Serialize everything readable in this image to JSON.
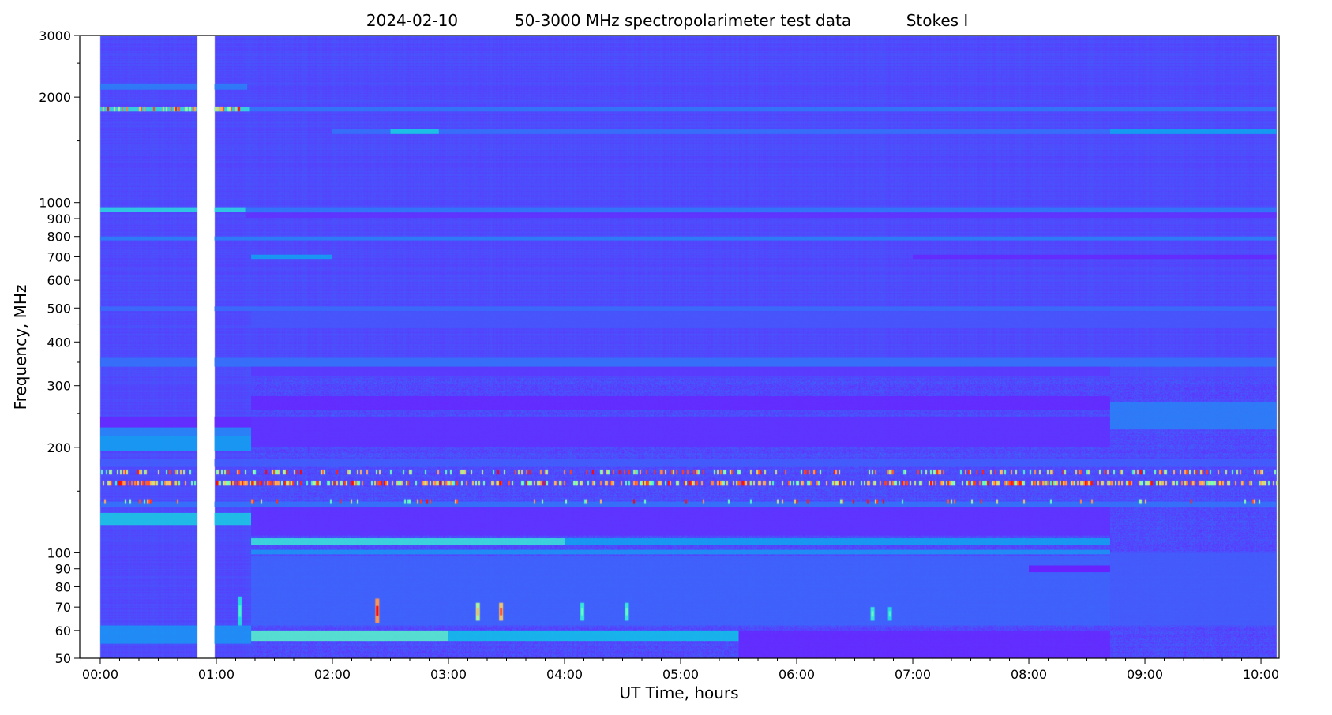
{
  "chart_data": {
    "type": "heatmap",
    "title_parts": [
      "2024-02-10",
      "50-3000 MHz spectropolarimeter test data",
      "Stokes I"
    ],
    "xlabel": "UT Time, hours",
    "ylabel": "Frequency, MHz",
    "x_ticks": [
      "00:00",
      "01:00",
      "02:00",
      "03:00",
      "04:00",
      "05:00",
      "06:00",
      "07:00",
      "08:00",
      "09:00",
      "10:00"
    ],
    "x_minor_step_minutes": 10,
    "y_scale": "log",
    "ylim": [
      50,
      3000
    ],
    "xlim": [
      "-00:10:36",
      "10:09:22"
    ],
    "y_ticks": [
      50,
      60,
      70,
      80,
      90,
      100,
      200,
      300,
      400,
      500,
      600,
      700,
      800,
      900,
      1000,
      2000,
      3000
    ],
    "y_minor_ticks": [
      150,
      250,
      350,
      450,
      1500,
      2500
    ],
    "colormap": "rainbow",
    "colors": {
      "background": "#504cfa",
      "gap": "#ffffff"
    },
    "data_range": [
      "00:00",
      "10:08"
    ],
    "data_gap": [
      "00:50",
      "00:59"
    ],
    "bands": [
      {
        "f": [
          2100,
          2180
        ],
        "t": [
          "00:00",
          "01:16"
        ],
        "level": 0.17
      },
      {
        "f": [
          1820,
          1880
        ],
        "t": [
          "00:00",
          "01:17"
        ],
        "level": 0.35
      },
      {
        "f": [
          1820,
          1880
        ],
        "t": [
          "01:17",
          "10:08"
        ],
        "level": 0.16
      },
      {
        "f": [
          1570,
          1620
        ],
        "t": [
          "02:00",
          "10:08"
        ],
        "level": 0.15
      },
      {
        "f": [
          1570,
          1620
        ],
        "t": [
          "02:30",
          "02:55"
        ],
        "level": 0.3
      },
      {
        "f": [
          1570,
          1620
        ],
        "t": [
          "08:42",
          "10:08"
        ],
        "level": 0.22
      },
      {
        "f": [
          940,
          970
        ],
        "t": [
          "00:00",
          "01:15"
        ],
        "level": 0.33
      },
      {
        "f": [
          940,
          970
        ],
        "t": [
          "01:15",
          "10:08"
        ],
        "level": 0.16
      },
      {
        "f": [
          905,
          935
        ],
        "t": [
          "01:15",
          "10:08"
        ],
        "level": 0.06
      },
      {
        "f": [
          780,
          800
        ],
        "t": [
          "00:00",
          "10:08"
        ],
        "level": 0.17
      },
      {
        "f": [
          690,
          710
        ],
        "t": [
          "01:18",
          "02:00"
        ],
        "level": 0.22
      },
      {
        "f": [
          690,
          710
        ],
        "t": [
          "07:00",
          "10:08"
        ],
        "level": 0.05
      },
      {
        "f": [
          490,
          505
        ],
        "t": [
          "00:00",
          "10:08"
        ],
        "level": 0.14
      },
      {
        "f": [
          440,
          490
        ],
        "t": [
          "01:18",
          "10:08"
        ],
        "level": 0.11
      },
      {
        "f": [
          340,
          360
        ],
        "t": [
          "00:00",
          "10:08"
        ],
        "level": 0.15
      },
      {
        "f": [
          320,
          340
        ],
        "t": [
          "01:18",
          "08:42"
        ],
        "level": 0.07
      },
      {
        "f": [
          255,
          280
        ],
        "t": [
          "01:18",
          "08:42"
        ],
        "level": 0.05
      },
      {
        "f": [
          228,
          245
        ],
        "t": [
          "00:00",
          "01:18"
        ],
        "level": 0.05
      },
      {
        "f": [
          215,
          228
        ],
        "t": [
          "00:00",
          "01:18"
        ],
        "level": 0.18
      },
      {
        "f": [
          195,
          215
        ],
        "t": [
          "00:00",
          "01:18"
        ],
        "level": 0.22
      },
      {
        "f": [
          200,
          245
        ],
        "t": [
          "01:18",
          "08:42"
        ],
        "level": 0.06
      },
      {
        "f": [
          225,
          270
        ],
        "t": [
          "08:42",
          "10:08"
        ],
        "level": 0.17
      },
      {
        "f": [
          176,
          185
        ],
        "t": [
          "00:00",
          "10:08"
        ],
        "level": 0.12
      },
      {
        "f": [
          135,
          140
        ],
        "t": [
          "00:00",
          "10:08"
        ],
        "level": 0.15
      },
      {
        "f": [
          120,
          130
        ],
        "t": [
          "00:00",
          "01:18"
        ],
        "level": 0.3
      },
      {
        "f": [
          112,
          135
        ],
        "t": [
          "01:18",
          "08:42"
        ],
        "level": 0.06
      },
      {
        "f": [
          105,
          110
        ],
        "t": [
          "01:18",
          "04:00"
        ],
        "level": 0.36
      },
      {
        "f": [
          105,
          110
        ],
        "t": [
          "04:00",
          "08:42"
        ],
        "level": 0.22
      },
      {
        "f": [
          99,
          102
        ],
        "t": [
          "01:18",
          "08:42"
        ],
        "level": 0.2
      },
      {
        "f": [
          62,
          98
        ],
        "t": [
          "01:18",
          "08:42"
        ],
        "level": 0.13
      },
      {
        "f": [
          88,
          92
        ],
        "t": [
          "08:00",
          "08:42"
        ],
        "level": 0.03
      },
      {
        "f": [
          56,
          60
        ],
        "t": [
          "01:18",
          "03:00"
        ],
        "level": 0.42
      },
      {
        "f": [
          56,
          60
        ],
        "t": [
          "03:00",
          "05:30"
        ],
        "level": 0.28
      },
      {
        "f": [
          50,
          60
        ],
        "t": [
          "05:30",
          "08:42"
        ],
        "level": 0.05
      },
      {
        "f": [
          55,
          62
        ],
        "t": [
          "00:00",
          "01:18"
        ],
        "level": 0.2
      },
      {
        "f": [
          62,
          100
        ],
        "t": [
          "08:42",
          "10:08"
        ],
        "level": 0.12
      }
    ],
    "speckle_lines": [
      {
        "f": 158,
        "t": [
          "00:00",
          "10:08"
        ],
        "density": 0.55
      },
      {
        "f": 170,
        "t": [
          "00:00",
          "10:08"
        ],
        "density": 0.3
      },
      {
        "f": 1850,
        "t": [
          "00:00",
          "01:17"
        ],
        "density": 0.4
      },
      {
        "f": 140,
        "t": [
          "00:00",
          "10:08"
        ],
        "density": 0.08
      }
    ],
    "bursts": [
      {
        "t": "01:12",
        "f": [
          62,
          75
        ],
        "level": 0.4
      },
      {
        "t": "02:23",
        "f": [
          63,
          74
        ],
        "level": 1.0
      },
      {
        "t": "03:15",
        "f": [
          64,
          72
        ],
        "level": 0.75
      },
      {
        "t": "03:27",
        "f": [
          64,
          72
        ],
        "level": 0.9
      },
      {
        "t": "04:09",
        "f": [
          64,
          72
        ],
        "level": 0.45
      },
      {
        "t": "04:32",
        "f": [
          64,
          72
        ],
        "level": 0.45
      },
      {
        "t": "06:39",
        "f": [
          64,
          70
        ],
        "level": 0.45
      },
      {
        "t": "06:48",
        "f": [
          64,
          70
        ],
        "level": 0.4
      }
    ]
  }
}
